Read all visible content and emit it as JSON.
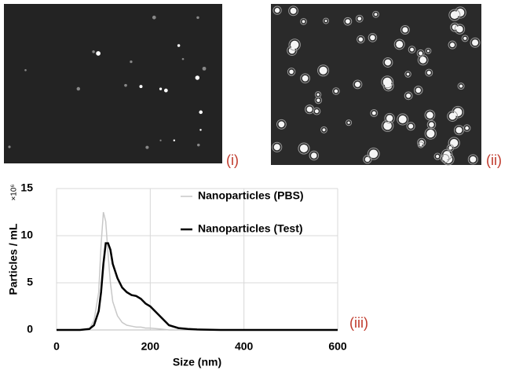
{
  "chart_data": {
    "type": "line",
    "panel_labels": [
      "(i)",
      "(ii)",
      "(iii)"
    ],
    "x_label": "Size (nm)",
    "y_label": "Particles / mL",
    "y_unit": "×10⁶",
    "x": [
      0,
      50,
      70,
      80,
      90,
      95,
      100,
      105,
      110,
      115,
      120,
      130,
      140,
      150,
      160,
      170,
      180,
      190,
      200,
      220,
      240,
      260,
      280,
      300,
      350,
      400,
      500,
      600
    ],
    "series": [
      {
        "name": "Nanoparticles (PBS)",
        "color": "#c8c8c8",
        "values": [
          0,
          0,
          0.1,
          1,
          4,
          9,
          12.5,
          11.5,
          8,
          5,
          3,
          1.5,
          0.8,
          0.5,
          0.4,
          0.3,
          0.3,
          0.2,
          0.2,
          0.1,
          0,
          0,
          0,
          0,
          0,
          0,
          0,
          0
        ]
      },
      {
        "name": "Nanoparticles (Test)",
        "color": "#000000",
        "values": [
          0,
          0,
          0.1,
          0.5,
          2,
          4,
          7,
          9.2,
          9.2,
          8.5,
          7,
          5.5,
          4.5,
          4,
          3.7,
          3.6,
          3.3,
          2.8,
          2.5,
          1.5,
          0.5,
          0.2,
          0.1,
          0.05,
          0,
          0,
          0,
          0
        ]
      }
    ],
    "xlim": [
      0,
      600
    ],
    "xticks": [
      0,
      200,
      400,
      600
    ],
    "ylim": [
      0,
      15
    ],
    "yticks": [
      0,
      5,
      10,
      15
    ],
    "grid": true
  }
}
